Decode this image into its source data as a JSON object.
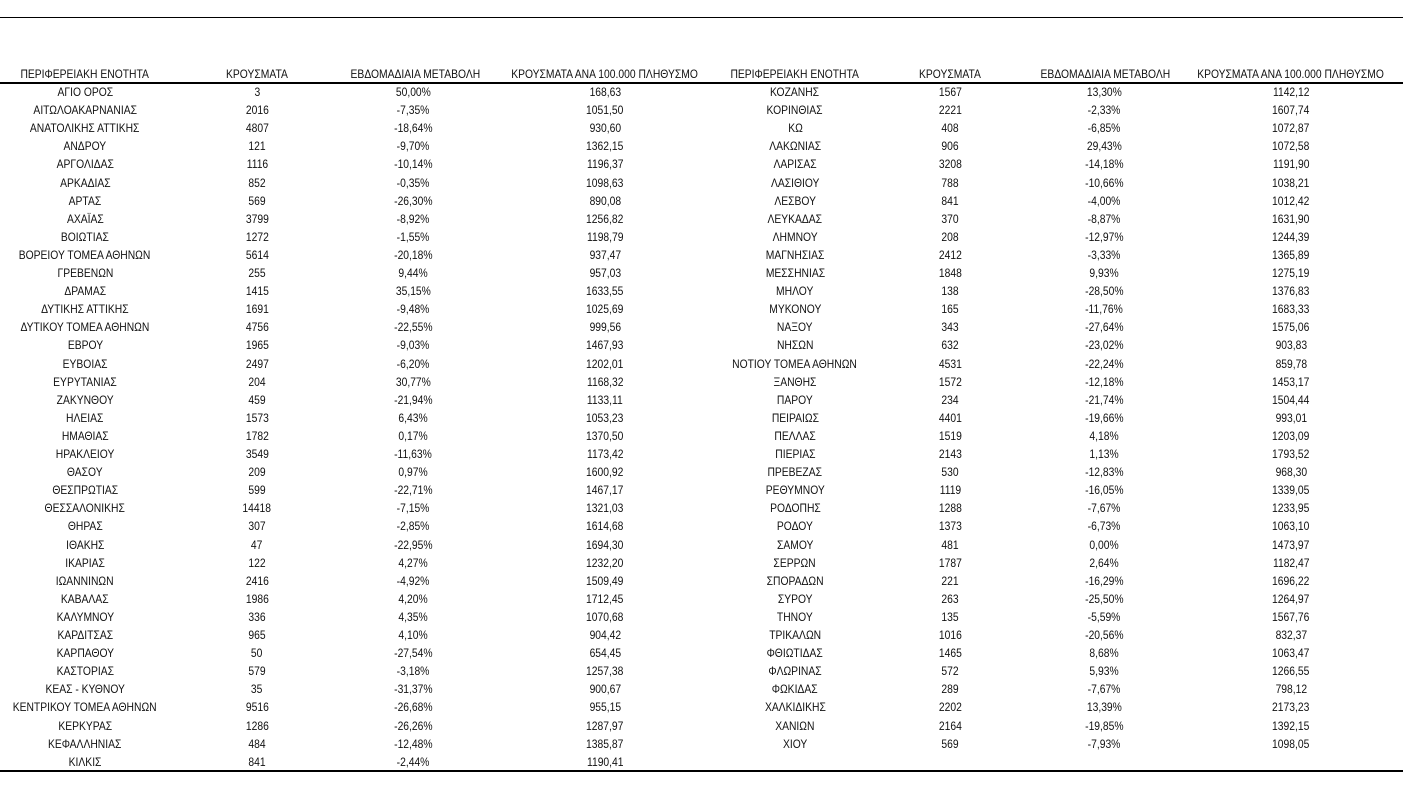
{
  "headers": [
    "ΠΕΡΙΦΕΡΕΙΑΚΗ ΕΝΟΤΗΤΑ",
    "ΚΡΟΥΣΜΑΤΑ",
    "ΕΒΔΟΜΑΔΙΑΙΑ ΜΕΤΑΒΟΛΗ",
    "ΚΡΟΥΣΜΑΤΑ ΑΝΑ 100.000 ΠΛΗΘΥΣΜΟ"
  ],
  "left_rows": [
    [
      "ΑΓΙΟ ΟΡΟΣ",
      "3",
      "50,00%",
      "168,63"
    ],
    [
      "ΑΙΤΩΛΟΑΚΑΡΝΑΝΙΑΣ",
      "2016",
      "-7,35%",
      "1051,50"
    ],
    [
      "ΑΝΑΤΟΛΙΚΗΣ ΑΤΤΙΚΗΣ",
      "4807",
      "-18,64%",
      "930,60"
    ],
    [
      "ΑΝΔΡΟΥ",
      "121",
      "-9,70%",
      "1362,15"
    ],
    [
      "ΑΡΓΟΛΙΔΑΣ",
      "1116",
      "-10,14%",
      "1196,37"
    ],
    [
      "ΑΡΚΑΔΙΑΣ",
      "852",
      "-0,35%",
      "1098,63"
    ],
    [
      "ΑΡΤΑΣ",
      "569",
      "-26,30%",
      "890,08"
    ],
    [
      "ΑΧΑΪΑΣ",
      "3799",
      "-8,92%",
      "1256,82"
    ],
    [
      "ΒΟΙΩΤΙΑΣ",
      "1272",
      "-1,55%",
      "1198,79"
    ],
    [
      "ΒΟΡΕΙΟΥ ΤΟΜΕΑ ΑΘΗΝΩΝ",
      "5614",
      "-20,18%",
      "937,47"
    ],
    [
      "ΓΡΕΒΕΝΩΝ",
      "255",
      "9,44%",
      "957,03"
    ],
    [
      "ΔΡΑΜΑΣ",
      "1415",
      "35,15%",
      "1633,55"
    ],
    [
      "ΔΥΤΙΚΗΣ ΑΤΤΙΚΗΣ",
      "1691",
      "-9,48%",
      "1025,69"
    ],
    [
      "ΔΥΤΙΚΟΥ ΤΟΜΕΑ ΑΘΗΝΩΝ",
      "4756",
      "-22,55%",
      "999,56"
    ],
    [
      "ΕΒΡΟΥ",
      "1965",
      "-9,03%",
      "1467,93"
    ],
    [
      "ΕΥΒΟΙΑΣ",
      "2497",
      "-6,20%",
      "1202,01"
    ],
    [
      "ΕΥΡΥΤΑΝΙΑΣ",
      "204",
      "30,77%",
      "1168,32"
    ],
    [
      "ΖΑΚΥΝΘΟΥ",
      "459",
      "-21,94%",
      "1133,11"
    ],
    [
      "ΗΛΕΙΑΣ",
      "1573",
      "6,43%",
      "1053,23"
    ],
    [
      "ΗΜΑΘΙΑΣ",
      "1782",
      "0,17%",
      "1370,50"
    ],
    [
      "ΗΡΑΚΛΕΙΟΥ",
      "3549",
      "-11,63%",
      "1173,42"
    ],
    [
      "ΘΑΣΟΥ",
      "209",
      "0,97%",
      "1600,92"
    ],
    [
      "ΘΕΣΠΡΩΤΙΑΣ",
      "599",
      "-22,71%",
      "1467,17"
    ],
    [
      "ΘΕΣΣΑΛΟΝΙΚΗΣ",
      "14418",
      "-7,15%",
      "1321,03"
    ],
    [
      "ΘΗΡΑΣ",
      "307",
      "-2,85%",
      "1614,68"
    ],
    [
      "ΙΘΑΚΗΣ",
      "47",
      "-22,95%",
      "1694,30"
    ],
    [
      "ΙΚΑΡΙΑΣ",
      "122",
      "4,27%",
      "1232,20"
    ],
    [
      "ΙΩΑΝΝΙΝΩΝ",
      "2416",
      "-4,92%",
      "1509,49"
    ],
    [
      "ΚΑΒΑΛΑΣ",
      "1986",
      "4,20%",
      "1712,45"
    ],
    [
      "ΚΑΛΥΜΝΟΥ",
      "336",
      "4,35%",
      "1070,68"
    ],
    [
      "ΚΑΡΔΙΤΣΑΣ",
      "965",
      "4,10%",
      "904,42"
    ],
    [
      "ΚΑΡΠΑΘΟΥ",
      "50",
      "-27,54%",
      "654,45"
    ],
    [
      "ΚΑΣΤΟΡΙΑΣ",
      "579",
      "-3,18%",
      "1257,38"
    ],
    [
      "ΚΕΑΣ - ΚΥΘΝΟΥ",
      "35",
      "-31,37%",
      "900,67"
    ],
    [
      "ΚΕΝΤΡΙΚΟΥ ΤΟΜΕΑ ΑΘΗΝΩΝ",
      "9516",
      "-26,68%",
      "955,15"
    ],
    [
      "ΚΕΡΚΥΡΑΣ",
      "1286",
      "-26,26%",
      "1287,97"
    ],
    [
      "ΚΕΦΑΛΛΗΝΙΑΣ",
      "484",
      "-12,48%",
      "1385,87"
    ],
    [
      "ΚΙΛΚΙΣ",
      "841",
      "-2,44%",
      "1190,41"
    ]
  ],
  "right_rows": [
    [
      "ΚΟΖΑΝΗΣ",
      "1567",
      "13,30%",
      "1142,12"
    ],
    [
      "ΚΟΡΙΝΘΙΑΣ",
      "2221",
      "-2,33%",
      "1607,74"
    ],
    [
      "ΚΩ",
      "408",
      "-6,85%",
      "1072,87"
    ],
    [
      "ΛΑΚΩΝΙΑΣ",
      "906",
      "29,43%",
      "1072,58"
    ],
    [
      "ΛΑΡΙΣΑΣ",
      "3208",
      "-14,18%",
      "1191,90"
    ],
    [
      "ΛΑΣΙΘΙΟΥ",
      "788",
      "-10,66%",
      "1038,21"
    ],
    [
      "ΛΕΣΒΟΥ",
      "841",
      "-4,00%",
      "1012,42"
    ],
    [
      "ΛΕΥΚΑΔΑΣ",
      "370",
      "-8,87%",
      "1631,90"
    ],
    [
      "ΛΗΜΝΟΥ",
      "208",
      "-12,97%",
      "1244,39"
    ],
    [
      "ΜΑΓΝΗΣΙΑΣ",
      "2412",
      "-3,33%",
      "1365,89"
    ],
    [
      "ΜΕΣΣΗΝΙΑΣ",
      "1848",
      "9,93%",
      "1275,19"
    ],
    [
      "ΜΗΛΟΥ",
      "138",
      "-28,50%",
      "1376,83"
    ],
    [
      "ΜΥΚΟΝΟΥ",
      "165",
      "-11,76%",
      "1683,33"
    ],
    [
      "ΝΑΞΟΥ",
      "343",
      "-27,64%",
      "1575,06"
    ],
    [
      "ΝΗΣΩΝ",
      "632",
      "-23,02%",
      "903,83"
    ],
    [
      "ΝΟΤΙΟΥ ΤΟΜΕΑ ΑΘΗΝΩΝ",
      "4531",
      "-22,24%",
      "859,78"
    ],
    [
      "ΞΑΝΘΗΣ",
      "1572",
      "-12,18%",
      "1453,17"
    ],
    [
      "ΠΑΡΟΥ",
      "234",
      "-21,74%",
      "1504,44"
    ],
    [
      "ΠΕΙΡΑΙΩΣ",
      "4401",
      "-19,66%",
      "993,01"
    ],
    [
      "ΠΕΛΛΑΣ",
      "1519",
      "4,18%",
      "1203,09"
    ],
    [
      "ΠΙΕΡΙΑΣ",
      "2143",
      "1,13%",
      "1793,52"
    ],
    [
      "ΠΡΕΒΕΖΑΣ",
      "530",
      "-12,83%",
      "968,30"
    ],
    [
      "ΡΕΘΥΜΝΟΥ",
      "1119",
      "-16,05%",
      "1339,05"
    ],
    [
      "ΡΟΔΟΠΗΣ",
      "1288",
      "-7,67%",
      "1233,95"
    ],
    [
      "ΡΟΔΟΥ",
      "1373",
      "-6,73%",
      "1063,10"
    ],
    [
      "ΣΑΜΟΥ",
      "481",
      "0,00%",
      "1473,97"
    ],
    [
      "ΣΕΡΡΩΝ",
      "1787",
      "2,64%",
      "1182,47"
    ],
    [
      "ΣΠΟΡΑΔΩΝ",
      "221",
      "-16,29%",
      "1696,22"
    ],
    [
      "ΣΥΡΟΥ",
      "263",
      "-25,50%",
      "1264,97"
    ],
    [
      "ΤΗΝΟΥ",
      "135",
      "-5,59%",
      "1567,76"
    ],
    [
      "ΤΡΙΚΑΛΩΝ",
      "1016",
      "-20,56%",
      "832,37"
    ],
    [
      "ΦΘΙΩΤΙΔΑΣ",
      "1465",
      "8,68%",
      "1063,47"
    ],
    [
      "ΦΛΩΡΙΝΑΣ",
      "572",
      "5,93%",
      "1266,55"
    ],
    [
      "ΦΩΚΙΔΑΣ",
      "289",
      "-7,67%",
      "798,12"
    ],
    [
      "ΧΑΛΚΙΔΙΚΗΣ",
      "2202",
      "13,39%",
      "2173,23"
    ],
    [
      "ΧΑΝΙΩΝ",
      "2164",
      "-19,85%",
      "1392,15"
    ],
    [
      "ΧΙΟΥ",
      "569",
      "-7,93%",
      "1098,05"
    ]
  ]
}
